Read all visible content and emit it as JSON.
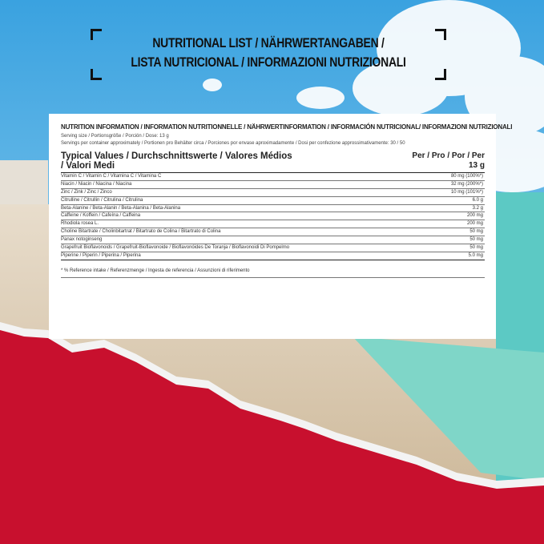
{
  "heading": {
    "line1": "NUTRITIONAL LIST / NÄHRWERTANGABEN /",
    "line2": "LISTA NUTRICIONAL / INFORMAZIONI NUTRIZIONALI"
  },
  "card": {
    "title": "NUTRITION INFORMATION / INFORMATION NUTRITIONNELLE / NÄHRWERTINFORMATION / INFORMACIÓN NUTRICIONAL/ INFORMAZIONI NUTRIZIONALI",
    "serving_size": "Serving size / Portionsgröße / Porción / Dose: 13 g",
    "servings_per_container": "Servings per container approximately / Portionen pro Behälter circa / Porciones por envase aproximadamente / Dosi per confezione approssimativamente: 30 / 50",
    "typical_values_line1": "Typical Values / Durchschnittswerte / Valores Médios",
    "typical_values_line2": "/ Valori Medi",
    "per_label": "Per / Pro / Por / Per",
    "per_amount": "13 g",
    "rows": [
      {
        "name": "Vitamin C / Vitamin C / Vitamina C / Vitamina C",
        "value": "80 mg (100%*)"
      },
      {
        "name": "Niacin / Niacin / Niacina / Niacina",
        "value": "32 mg (200%*)"
      },
      {
        "name": "Zinc / Zink / Zinc / Zinco",
        "value": "10 mg (101%*)"
      },
      {
        "name": "Citrulline / Citrullin / Citrulina / Citrulina",
        "value": "6.0 g"
      },
      {
        "name": "Beta-Alanine / Beta-Alanin / Beta-Alanina / Beta-Alanina",
        "value": "3.2 g"
      },
      {
        "name": "Caffeine / Koffein / Cafeína / Caffeina",
        "value": "200 mg"
      },
      {
        "name": "Rhodiola rosea L.",
        "value": "200 mg"
      },
      {
        "name": "Choline Bitartrate / Cholinbitartrat / Bitartrato de Colina / Bitartrato di Colina",
        "value": "50 mg"
      },
      {
        "name": "Panax notoginseng",
        "value": "50 mg"
      },
      {
        "name": "Grapefruit Bioflavonoids / Grapefruit-Bioflavonoide / Bioflavonóides De Toranja / Bioflavonoidi Di Pompelmo",
        "value": "50 mg"
      },
      {
        "name": "Piperine / Piperin / Piperina / Piperina",
        "value": "5.0 mg"
      }
    ],
    "footnote": "* % Reference intake / Referenzmenge / Ingesta de referencia / Assunzioni di riferimento"
  },
  "colors": {
    "sky": "#5fb6e6",
    "sand": "#d9c9b0",
    "sea": "#5cc9c4",
    "red": "#c8102e"
  }
}
